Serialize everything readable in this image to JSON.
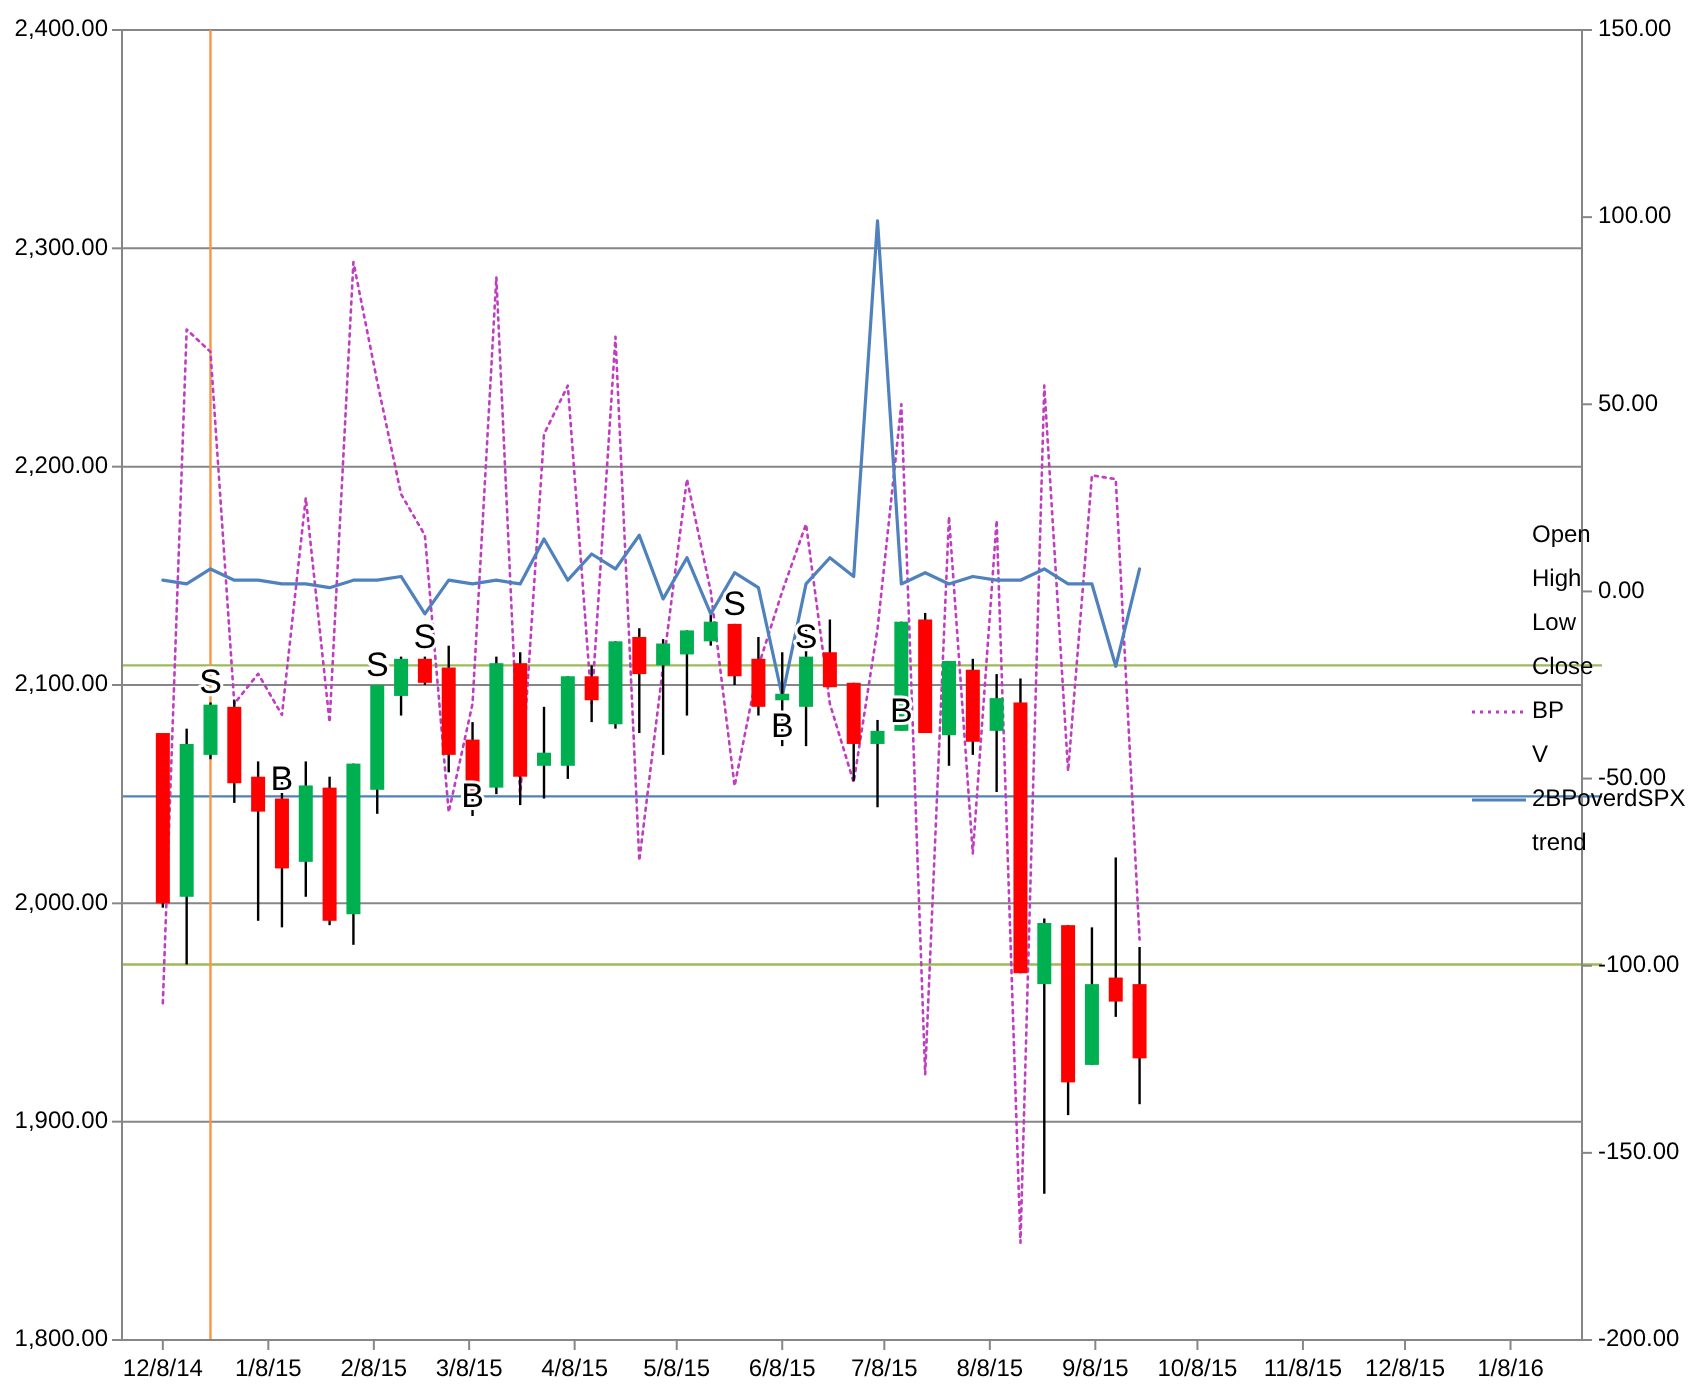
{
  "chart_data": {
    "type": "candlestick",
    "x": [
      "2014-12-08",
      "2014-12-15",
      "2014-12-22",
      "2014-12-29",
      "2015-01-05",
      "2015-01-12",
      "2015-01-19",
      "2015-01-26",
      "2015-02-02",
      "2015-02-09",
      "2015-02-16",
      "2015-02-23",
      "2015-03-02",
      "2015-03-09",
      "2015-03-16",
      "2015-03-23",
      "2015-03-30",
      "2015-04-06",
      "2015-04-13",
      "2015-04-20",
      "2015-04-27",
      "2015-05-04",
      "2015-05-11",
      "2015-05-18",
      "2015-05-25",
      "2015-06-01",
      "2015-06-08",
      "2015-06-15",
      "2015-06-22",
      "2015-06-29",
      "2015-07-06",
      "2015-07-13",
      "2015-07-20",
      "2015-07-27",
      "2015-08-03",
      "2015-08-10",
      "2015-08-17",
      "2015-08-24",
      "2015-08-31",
      "2015-09-07",
      "2015-09-14",
      "2015-09-21"
    ],
    "ohlc": [
      [
        2078,
        2078,
        1998,
        2000
      ],
      [
        2003,
        2080,
        1972,
        2073
      ],
      [
        2068,
        2092,
        2066,
        2091
      ],
      [
        2090,
        2093,
        2046,
        2055
      ],
      [
        2058,
        2065,
        1992,
        2042
      ],
      [
        2048,
        2058,
        1989,
        2016
      ],
      [
        2019,
        2065,
        2003,
        2054
      ],
      [
        2053,
        2058,
        1990,
        1992
      ],
      [
        1995,
        2064,
        1981,
        2064
      ],
      [
        2052,
        2100,
        2041,
        2100
      ],
      [
        2095,
        2113,
        2086,
        2112
      ],
      [
        2112,
        2113,
        2100,
        2101
      ],
      [
        2108,
        2118,
        2060,
        2068
      ],
      [
        2075,
        2083,
        2040,
        2050
      ],
      [
        2053,
        2113,
        2050,
        2110
      ],
      [
        2110,
        2115,
        2045,
        2058
      ],
      [
        2063,
        2090,
        2048,
        2069
      ],
      [
        2063,
        2104,
        2057,
        2104
      ],
      [
        2104,
        2109,
        2083,
        2093
      ],
      [
        2082,
        2120,
        2080,
        2120
      ],
      [
        2122,
        2126,
        2078,
        2105
      ],
      [
        2109,
        2121,
        2068,
        2119
      ],
      [
        2114,
        2125,
        2086,
        2125
      ],
      [
        2120,
        2132,
        2118,
        2129
      ],
      [
        2128,
        2128,
        2100,
        2104
      ],
      [
        2112,
        2122,
        2086,
        2090
      ],
      [
        2093,
        2115,
        2072,
        2096
      ],
      [
        2090,
        2127,
        2072,
        2113
      ],
      [
        2115,
        2130,
        2099,
        2099
      ],
      [
        2101,
        2101,
        2056,
        2073
      ],
      [
        2073,
        2084,
        2044,
        2079
      ],
      [
        2079,
        2129,
        2079,
        2129
      ],
      [
        2130,
        2133,
        2078,
        2078
      ],
      [
        2077,
        2111,
        2063,
        2111
      ],
      [
        2107,
        2112,
        2068,
        2074
      ],
      [
        2079,
        2105,
        2051,
        2094
      ],
      [
        2092,
        2103,
        1968,
        1968
      ],
      [
        1963,
        1993,
        1867,
        1991
      ],
      [
        1990,
        1990,
        1903,
        1918
      ],
      [
        1926,
        1989,
        1926,
        1963
      ],
      [
        1966,
        2021,
        1948,
        1955
      ],
      [
        1963,
        1980,
        1908,
        1929
      ]
    ],
    "colors": [
      "#ff0000",
      "#00b050",
      "#00b050",
      "#ff0000",
      "#ff0000",
      "#ff0000",
      "#00b050",
      "#ff0000",
      "#00b050",
      "#00b050",
      "#00b050",
      "#ff0000",
      "#ff0000",
      "#ff0000",
      "#00b050",
      "#ff0000",
      "#00b050",
      "#00b050",
      "#ff0000",
      "#00b050",
      "#ff0000",
      "#00b050",
      "#00b050",
      "#00b050",
      "#ff0000",
      "#ff0000",
      "#00b050",
      "#00b050",
      "#ff0000",
      "#ff0000",
      "#00b050",
      "#00b050",
      "#ff0000",
      "#00b050",
      "#ff0000",
      "#00b050",
      "#ff0000",
      "#00b050",
      "#ff0000",
      "#00b050",
      "#ff0000",
      "#ff0000"
    ],
    "series": [
      {
        "name": "Open",
        "type": "line",
        "values": [
          null,
          null,
          null,
          null,
          null,
          null,
          null,
          null,
          null,
          null,
          null,
          null,
          null,
          null,
          null,
          null,
          null,
          null,
          null,
          null,
          null,
          null,
          null,
          null,
          null,
          null,
          null,
          null,
          null,
          null,
          null,
          null,
          null,
          null,
          null,
          null,
          null,
          null,
          null,
          null,
          null,
          null
        ]
      },
      {
        "name": "High",
        "type": "line",
        "values": [
          null,
          null,
          null,
          null,
          null,
          null,
          null,
          null,
          null,
          null,
          null,
          null,
          null,
          null,
          null,
          null,
          null,
          null,
          null,
          null,
          null,
          null,
          null,
          null,
          null,
          null,
          null,
          null,
          null,
          null,
          null,
          null,
          null,
          null,
          null,
          null,
          null,
          null,
          null,
          null,
          null,
          null
        ]
      },
      {
        "name": "Low",
        "type": "line",
        "values": [
          null,
          null,
          null,
          null,
          null,
          null,
          null,
          null,
          null,
          null,
          null,
          null,
          null,
          null,
          null,
          null,
          null,
          null,
          null,
          null,
          null,
          null,
          null,
          null,
          null,
          null,
          null,
          null,
          null,
          null,
          null,
          null,
          null,
          null,
          null,
          null,
          null,
          null,
          null,
          null,
          null,
          null
        ]
      },
      {
        "name": "Close",
        "type": "line",
        "values": [
          null,
          null,
          null,
          null,
          null,
          null,
          null,
          null,
          null,
          null,
          null,
          null,
          null,
          null,
          null,
          null,
          null,
          null,
          null,
          null,
          null,
          null,
          null,
          null,
          null,
          null,
          null,
          null,
          null,
          null,
          null,
          null,
          null,
          null,
          null,
          null,
          null,
          null,
          null,
          null,
          null,
          null
        ]
      },
      {
        "name": "BP",
        "type": "line",
        "axis": "y2",
        "color": "#c03cc0",
        "line_style": "dotted",
        "values": [
          -110,
          70,
          64,
          -30,
          -22,
          -33,
          25,
          -35,
          88,
          56,
          26,
          15,
          -59,
          -30,
          84,
          -55,
          42,
          55,
          -30,
          68,
          -72,
          -20,
          30,
          0,
          -52,
          -20,
          0,
          18,
          -30,
          -51,
          -10,
          50,
          -129,
          20,
          -70,
          19,
          -174,
          55,
          -48,
          31,
          30,
          -93
        ]
      },
      {
        "name": "V",
        "type": "line",
        "values": [
          null,
          null,
          null,
          null,
          null,
          null,
          null,
          null,
          null,
          null,
          null,
          null,
          null,
          null,
          null,
          null,
          null,
          null,
          null,
          null,
          null,
          null,
          null,
          null,
          null,
          null,
          null,
          null,
          null,
          null,
          null,
          null,
          null,
          null,
          null,
          null,
          null,
          null,
          null,
          null,
          null,
          null
        ]
      },
      {
        "name": "2BPoverdSPX",
        "type": "line",
        "axis": "y2",
        "color": "#4f81bd",
        "line_style": "solid",
        "values": [
          3,
          2,
          6,
          3,
          3,
          2,
          2,
          1,
          3,
          3,
          4,
          -6,
          3,
          2,
          3,
          2,
          14,
          3,
          10,
          6,
          15,
          -2,
          9,
          -6,
          5,
          1,
          -28,
          2,
          9,
          4,
          99,
          2,
          5,
          2,
          4,
          3,
          3,
          6,
          2,
          2,
          -20,
          6
        ]
      },
      {
        "name": "trend",
        "type": "line",
        "values": [
          null,
          null,
          null,
          null,
          null,
          null,
          null,
          null,
          null,
          null,
          null,
          null,
          null,
          null,
          null,
          null,
          null,
          null,
          null,
          null,
          null,
          null,
          null,
          null,
          null,
          null,
          null,
          null,
          null,
          null,
          null,
          null,
          null,
          null,
          null,
          null,
          null,
          null,
          null,
          null,
          null,
          null
        ]
      }
    ],
    "xlim": [
      "2014-11-26",
      "2016-01-29"
    ],
    "xticks": [
      {
        "value": "2014-12-08",
        "label": "12/8/14"
      },
      {
        "value": "2015-01-08",
        "label": "1/8/15"
      },
      {
        "value": "2015-02-08",
        "label": "2/8/15"
      },
      {
        "value": "2015-03-08",
        "label": "3/8/15"
      },
      {
        "value": "2015-04-08",
        "label": "4/8/15"
      },
      {
        "value": "2015-05-08",
        "label": "5/8/15"
      },
      {
        "value": "2015-06-08",
        "label": "6/8/15"
      },
      {
        "value": "2015-07-08",
        "label": "7/8/15"
      },
      {
        "value": "2015-08-08",
        "label": "8/8/15"
      },
      {
        "value": "2015-09-08",
        "label": "9/8/15"
      },
      {
        "value": "2015-10-08",
        "label": "10/8/15"
      },
      {
        "value": "2015-11-08",
        "label": "11/8/15"
      },
      {
        "value": "2015-12-08",
        "label": "12/8/15"
      },
      {
        "value": "2016-01-08",
        "label": "1/8/16"
      }
    ],
    "ylim": [
      1800,
      2400
    ],
    "yticks": [
      {
        "value": 1800,
        "label": "1,800.00"
      },
      {
        "value": 1900,
        "label": "1,900.00"
      },
      {
        "value": 2000,
        "label": "2,000.00"
      },
      {
        "value": 2100,
        "label": "2,100.00"
      },
      {
        "value": 2200,
        "label": "2,200.00"
      },
      {
        "value": 2300,
        "label": "2,300.00"
      },
      {
        "value": 2400,
        "label": "2,400.00"
      }
    ],
    "y2lim": [
      -200,
      150
    ],
    "y2ticks": [
      {
        "value": -200,
        "label": "-200.00"
      },
      {
        "value": -150,
        "label": "-150.00"
      },
      {
        "value": -100,
        "label": "-100.00"
      },
      {
        "value": -50,
        "label": "-50.00"
      },
      {
        "value": 0,
        "label": "0.00"
      },
      {
        "value": 50,
        "label": "50.00"
      },
      {
        "value": 100,
        "label": "100.00"
      },
      {
        "value": 150,
        "label": "150.00"
      }
    ],
    "grid": "y",
    "legend": "right",
    "ref_lines": [
      {
        "axis": "y",
        "value": 2109,
        "color": "#9bbb59"
      },
      {
        "axis": "y",
        "value": 1972,
        "color": "#9bbb59"
      },
      {
        "axis": "y",
        "value": 2049,
        "color": "#4f81bd"
      },
      {
        "axis": "x",
        "value": "2014-12-22",
        "color": "#f79646"
      }
    ],
    "annotations": [
      {
        "text": "S",
        "x": "2014-12-22",
        "y": 2092
      },
      {
        "text": "B",
        "x": "2015-01-12",
        "y": 2048
      },
      {
        "text": "S",
        "x": "2015-02-09",
        "y": 2100
      },
      {
        "text": "S",
        "x": "2015-02-23",
        "y": 2113
      },
      {
        "text": "B",
        "x": "2015-03-09",
        "y": 2040
      },
      {
        "text": "S",
        "x": "2015-05-25",
        "y": 2128
      },
      {
        "text": "B",
        "x": "2015-06-08",
        "y": 2072
      },
      {
        "text": "S",
        "x": "2015-06-15",
        "y": 2113
      },
      {
        "text": "B",
        "x": "2015-07-13",
        "y": 2079
      }
    ]
  }
}
